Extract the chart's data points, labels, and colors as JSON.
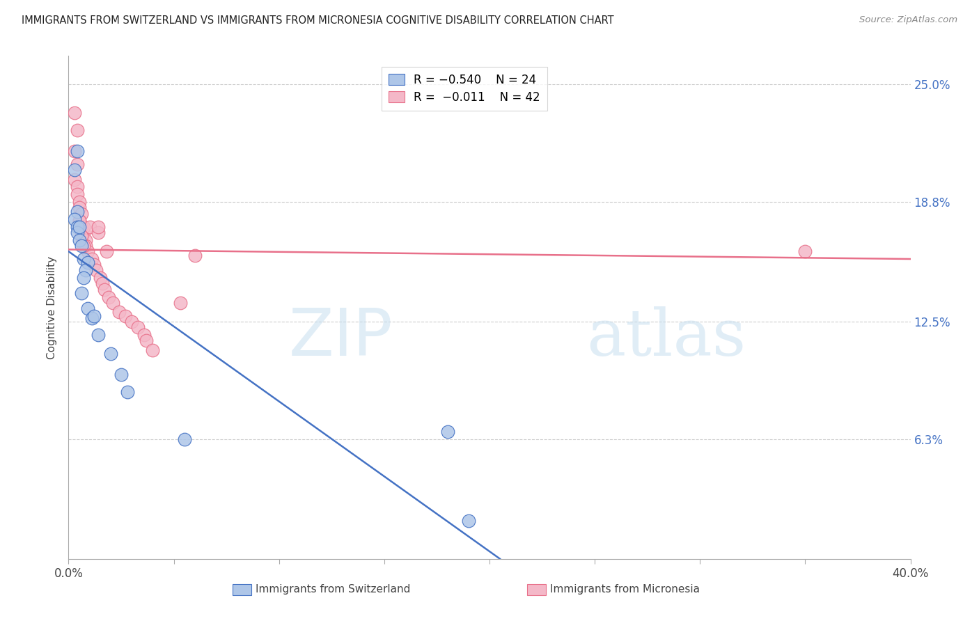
{
  "title": "IMMIGRANTS FROM SWITZERLAND VS IMMIGRANTS FROM MICRONESIA COGNITIVE DISABILITY CORRELATION CHART",
  "source": "Source: ZipAtlas.com",
  "ylabel": "Cognitive Disability",
  "yticks": [
    "6.3%",
    "12.5%",
    "18.8%",
    "25.0%"
  ],
  "ytick_values": [
    0.063,
    0.125,
    0.188,
    0.25
  ],
  "xlim": [
    0.0,
    0.4
  ],
  "ylim": [
    0.0,
    0.265
  ],
  "legend_r1": "R = −0.540",
  "legend_n1": "N = 24",
  "legend_r2": "R =  −0.011",
  "legend_n2": "N = 42",
  "color_blue": "#aec6e8",
  "color_pink": "#f4b8c8",
  "line_color_blue": "#4472c4",
  "line_color_pink": "#e8708a",
  "watermark_zip": "ZIP",
  "watermark_atlas": "atlas",
  "sw_line_x0": 0.0,
  "sw_line_y0": 0.162,
  "sw_line_x1": 0.205,
  "sw_line_y1": 0.0,
  "mc_line_x0": 0.0,
  "mc_line_y0": 0.163,
  "mc_line_x1": 0.4,
  "mc_line_y1": 0.158,
  "switzerland_x": [
    0.004,
    0.003,
    0.004,
    0.003,
    0.004,
    0.004,
    0.005,
    0.006,
    0.007,
    0.009,
    0.005,
    0.008,
    0.007,
    0.006,
    0.009,
    0.011,
    0.014,
    0.02,
    0.012,
    0.025,
    0.028,
    0.055,
    0.18,
    0.19
  ],
  "switzerland_y": [
    0.215,
    0.205,
    0.183,
    0.179,
    0.175,
    0.172,
    0.168,
    0.165,
    0.158,
    0.156,
    0.175,
    0.152,
    0.148,
    0.14,
    0.132,
    0.127,
    0.118,
    0.108,
    0.128,
    0.097,
    0.088,
    0.063,
    0.067,
    0.02
  ],
  "micronesia_x": [
    0.003,
    0.004,
    0.003,
    0.004,
    0.003,
    0.004,
    0.004,
    0.005,
    0.005,
    0.006,
    0.005,
    0.006,
    0.007,
    0.007,
    0.008,
    0.008,
    0.009,
    0.01,
    0.011,
    0.012,
    0.013,
    0.015,
    0.016,
    0.017,
    0.019,
    0.021,
    0.024,
    0.027,
    0.03,
    0.033,
    0.036,
    0.014,
    0.018,
    0.014,
    0.006,
    0.007,
    0.005,
    0.35,
    0.037,
    0.04,
    0.053,
    0.06
  ],
  "micronesia_y": [
    0.235,
    0.226,
    0.215,
    0.208,
    0.2,
    0.196,
    0.192,
    0.188,
    0.185,
    0.182,
    0.178,
    0.175,
    0.172,
    0.175,
    0.168,
    0.165,
    0.162,
    0.175,
    0.158,
    0.155,
    0.152,
    0.148,
    0.145,
    0.142,
    0.138,
    0.135,
    0.13,
    0.128,
    0.125,
    0.122,
    0.118,
    0.172,
    0.162,
    0.175,
    0.17,
    0.165,
    0.178,
    0.162,
    0.115,
    0.11,
    0.135,
    0.16
  ]
}
